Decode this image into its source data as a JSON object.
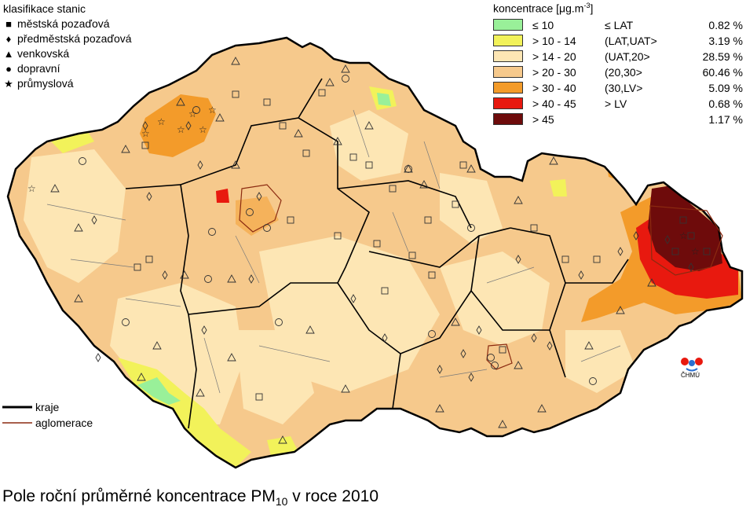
{
  "station_legend": {
    "title": "klasifikace stanic",
    "items": [
      {
        "symbol": "square",
        "label": "městská pozaďová"
      },
      {
        "symbol": "diamond",
        "label": "předměstská pozaďová"
      },
      {
        "symbol": "triangle",
        "label": "venkovská"
      },
      {
        "symbol": "circle",
        "label": "dopravní"
      },
      {
        "symbol": "star",
        "label": "průmyslová"
      }
    ]
  },
  "concentration_legend": {
    "title": "koncentrace [μg.m",
    "title_sup": "-3",
    "title_end": "]",
    "classes": [
      {
        "range": "≤ 10",
        "class": "≤ LAT",
        "percent": "0.82 %",
        "color": "#99f099"
      },
      {
        "range": "> 10 - 14",
        "class": "(LAT,UAT>",
        "percent": "3.19 %",
        "color": "#f2f25a"
      },
      {
        "range": "> 14 - 20",
        "class": "(UAT,20>",
        "percent": "28.59 %",
        "color": "#fde6b4"
      },
      {
        "range": "> 20 - 30",
        "class": "(20,30>",
        "percent": "60.46 %",
        "color": "#f6c98c"
      },
      {
        "range": "> 30 - 40",
        "class": "(30,LV>",
        "percent": "5.09 %",
        "color": "#f39b2a"
      },
      {
        "range": "> 40 - 45",
        "class": "> LV",
        "percent": "0.68 %",
        "color": "#e8190f"
      },
      {
        "range": "> 45",
        "class": "",
        "percent": "1.17 %",
        "color": "#6e0b0b"
      }
    ]
  },
  "line_legend": [
    {
      "label": "kraje",
      "color": "#000000"
    },
    {
      "label": "aglomerace",
      "color": "#8b2a10"
    }
  ],
  "caption": {
    "text": "Pole roční průměrné koncentrace PM",
    "sub": "10",
    "suffix": " v roce 2010"
  },
  "logo": {
    "text": "ČHMÚ"
  },
  "colors": {
    "border": "#000000",
    "region_line": "#666666",
    "station_fill": "#ffffff"
  }
}
